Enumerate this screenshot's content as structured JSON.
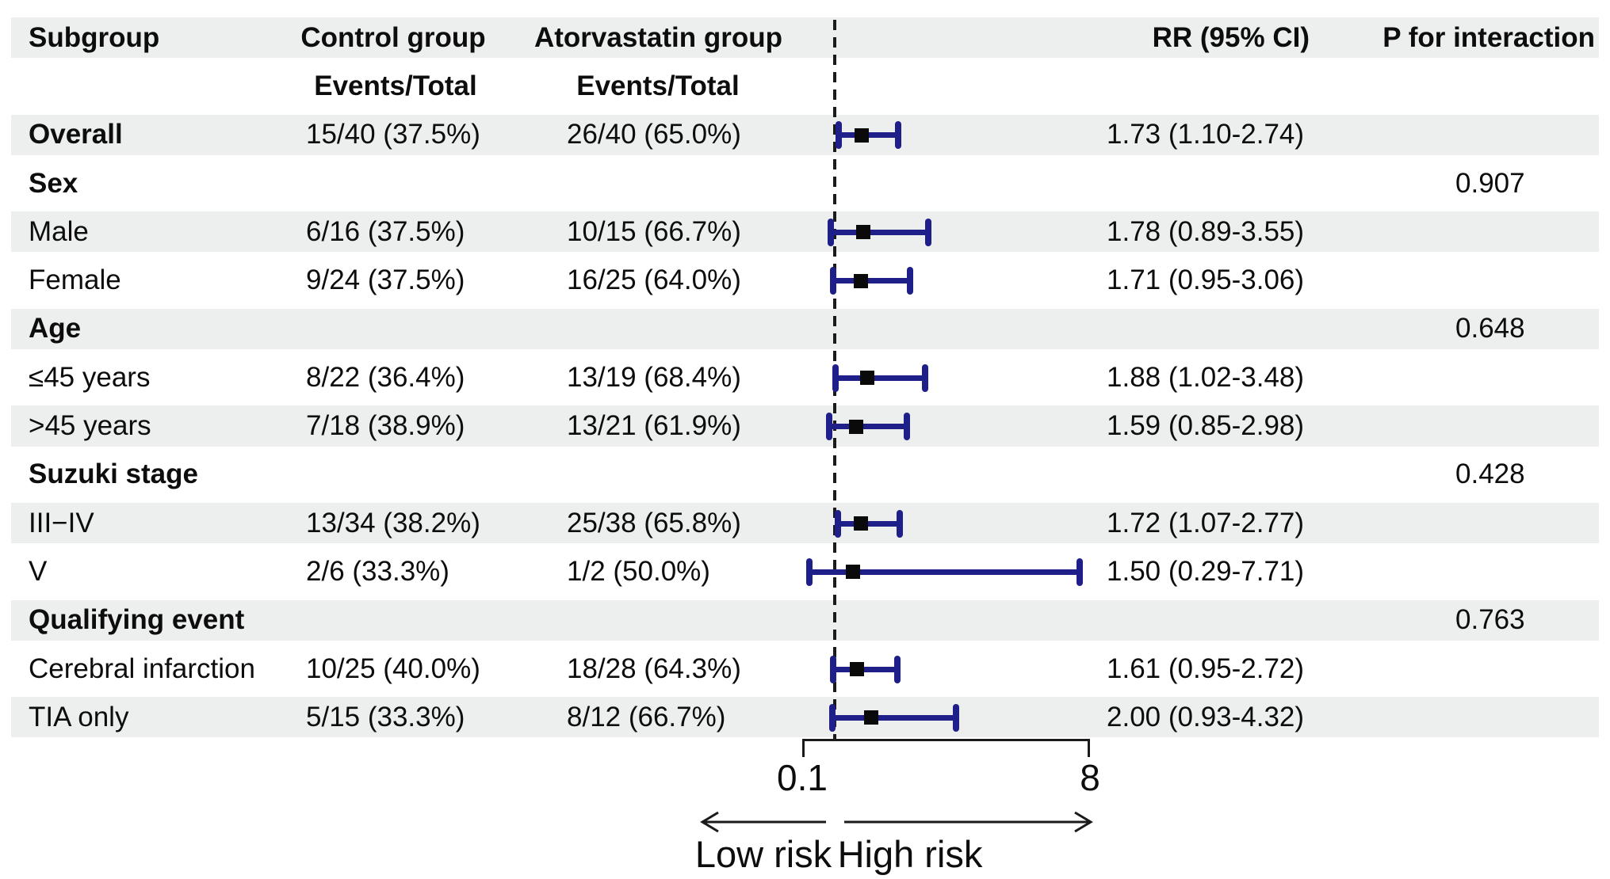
{
  "header": {
    "subgroup": "Subgroup",
    "control": "Control group",
    "atorvastatin": "Atorvastatin group",
    "events_total": "Events/Total",
    "rr": "RR (95% CI)",
    "p_interaction": "P for interaction"
  },
  "rows": [
    {
      "label": "Overall",
      "control": "15/40 (37.5%)",
      "atorvastatin": "26/40 (65.0%)",
      "rr_text": "1.73 (1.10-2.74)",
      "rr": 1.73,
      "lo": 1.1,
      "hi": 2.74
    },
    {
      "label": "Sex",
      "p": "0.907"
    },
    {
      "label": "Male",
      "control": "6/16 (37.5%)",
      "atorvastatin": "10/15 (66.7%)",
      "rr_text": "1.78 (0.89-3.55)",
      "rr": 1.78,
      "lo": 0.89,
      "hi": 3.55
    },
    {
      "label": "Female",
      "control": "9/24 (37.5%)",
      "atorvastatin": "16/25 (64.0%)",
      "rr_text": "1.71 (0.95-3.06)",
      "rr": 1.71,
      "lo": 0.95,
      "hi": 3.06
    },
    {
      "label": "Age",
      "p": "0.648"
    },
    {
      "label": "≤45 years",
      "control": "8/22 (36.4%)",
      "atorvastatin": "13/19 (68.4%)",
      "rr_text": "1.88 (1.02-3.48)",
      "rr": 1.88,
      "lo": 1.02,
      "hi": 3.48
    },
    {
      "label": ">45 years",
      "control": "7/18 (38.9%)",
      "atorvastatin": "13/21 (61.9%)",
      "rr_text": "1.59 (0.85-2.98)",
      "rr": 1.59,
      "lo": 0.85,
      "hi": 2.98
    },
    {
      "label": "Suzuki stage",
      "p": "0.428"
    },
    {
      "label": "III−IV",
      "control": "13/34 (38.2%)",
      "atorvastatin": "25/38 (65.8%)",
      "rr_text": "1.72 (1.07-2.77)",
      "rr": 1.72,
      "lo": 1.07,
      "hi": 2.77
    },
    {
      "label": "V",
      "control": "2/6 (33.3%)",
      "atorvastatin": "1/2 (50.0%)",
      "rr_text": "1.50 (0.29-7.71)",
      "rr": 1.5,
      "lo": 0.29,
      "hi": 7.71
    },
    {
      "label": "Qualifying event",
      "p": "0.763"
    },
    {
      "label": "Cerebral infarction",
      "control": "10/25 (40.0%)",
      "atorvastatin": "18/28 (64.3%)",
      "rr_text": "1.61 (0.95-2.72)",
      "rr": 1.61,
      "lo": 0.95,
      "hi": 2.72
    },
    {
      "label": "TIA only",
      "control": "5/15 (33.3%)",
      "atorvastatin": "8/12 (66.7%)",
      "rr_text": "2.00 (0.93-4.32)",
      "rr": 2.0,
      "lo": 0.93,
      "hi": 4.32
    }
  ],
  "axis": {
    "min_label": "0.1",
    "max_label": "8",
    "low_label": "Low risk",
    "high_label": "High risk"
  },
  "colors": {
    "stripe": "#ecefee",
    "ci_line": "#1f1f8a",
    "point_square": "#0a0a0a",
    "text": "#0d0d0d"
  },
  "chart_data": {
    "type": "scatter",
    "subtype": "forest-plot",
    "title": "",
    "xlabel": "RR (95% CI)",
    "axis": {
      "min": 0.1,
      "max": 8,
      "ref": 1.0,
      "scale": "linear",
      "tick_labels": [
        "0.1",
        "8"
      ]
    },
    "direction_labels": {
      "left_of_ref": "Low risk",
      "right_of_ref": "High risk"
    },
    "points": [
      {
        "label": "Overall",
        "rr": 1.73,
        "ci_low": 1.1,
        "ci_high": 2.74
      },
      {
        "label": "Male",
        "rr": 1.78,
        "ci_low": 0.89,
        "ci_high": 3.55
      },
      {
        "label": "Female",
        "rr": 1.71,
        "ci_low": 0.95,
        "ci_high": 3.06
      },
      {
        "label": "≤45 years",
        "rr": 1.88,
        "ci_low": 1.02,
        "ci_high": 3.48
      },
      {
        "label": ">45 years",
        "rr": 1.59,
        "ci_low": 0.85,
        "ci_high": 2.98
      },
      {
        "label": "III−IV",
        "rr": 1.72,
        "ci_low": 1.07,
        "ci_high": 2.77
      },
      {
        "label": "V",
        "rr": 1.5,
        "ci_low": 0.29,
        "ci_high": 7.71
      },
      {
        "label": "Cerebral infarction",
        "rr": 1.61,
        "ci_low": 0.95,
        "ci_high": 2.72
      },
      {
        "label": "TIA only",
        "rr": 2.0,
        "ci_low": 0.93,
        "ci_high": 4.32
      }
    ],
    "p_for_interaction": [
      {
        "group": "Sex",
        "p": 0.907
      },
      {
        "group": "Age",
        "p": 0.648
      },
      {
        "group": "Suzuki stage",
        "p": 0.428
      },
      {
        "group": "Qualifying event",
        "p": 0.763
      }
    ]
  }
}
